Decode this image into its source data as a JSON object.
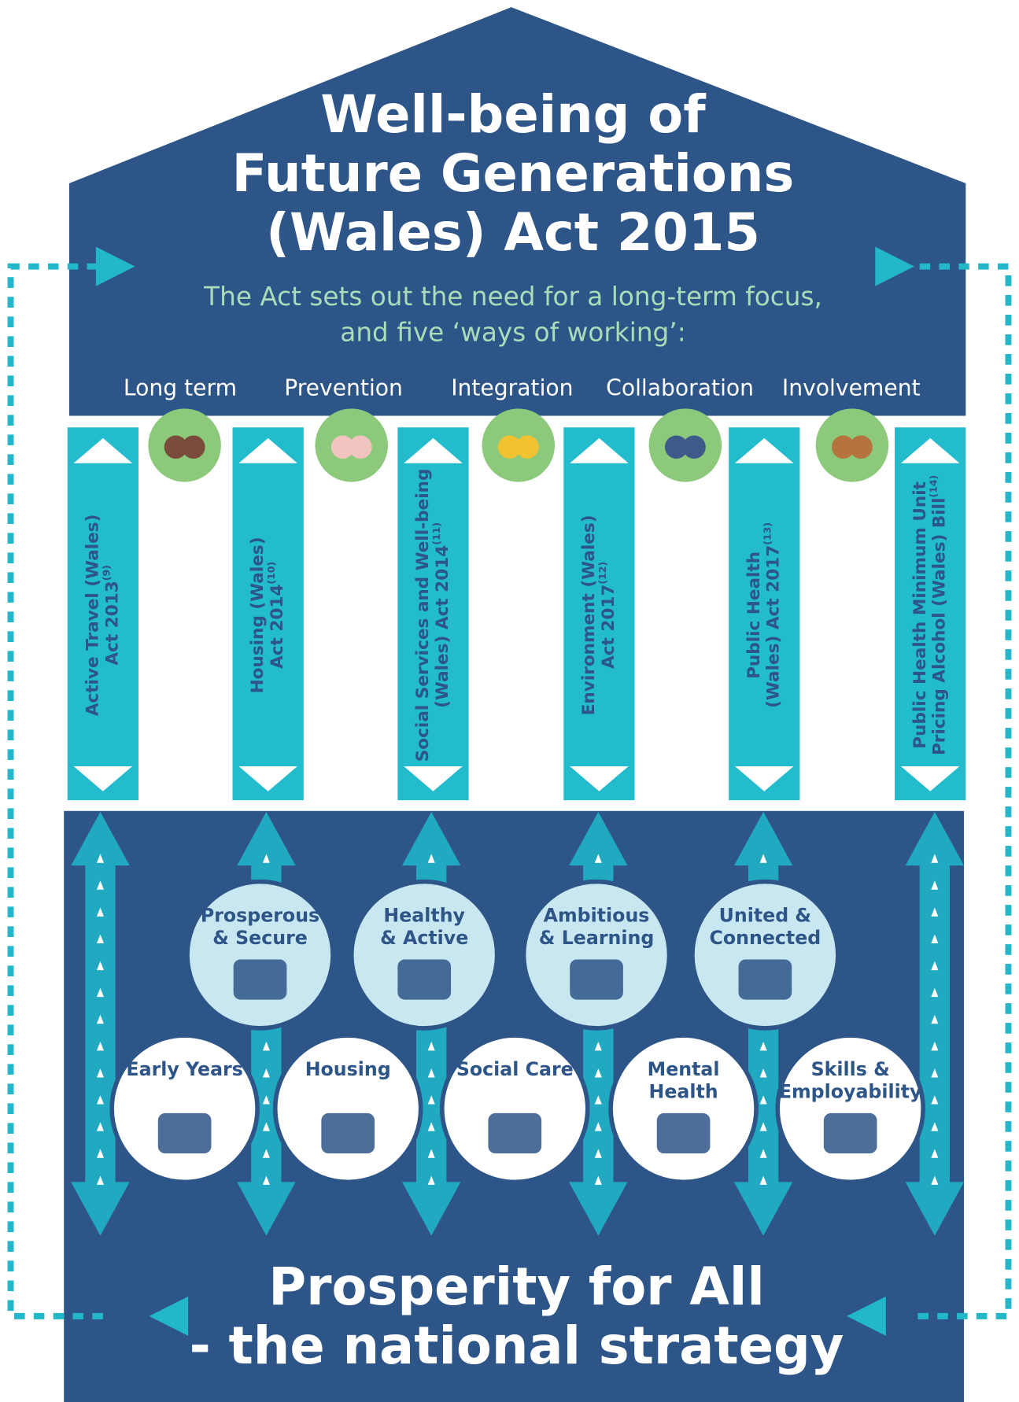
{
  "title": [
    "Well-being of",
    "Future Generations",
    "(Wales) Act 2015"
  ],
  "subtitle": [
    "The Act sets out the need for a long-term focus,",
    "and five ‘ways of working’:"
  ],
  "ways_of_working": [
    "Long term",
    "Prevention",
    "Integration",
    "Collaboration",
    "Involvement"
  ],
  "acts": [
    {
      "lines": [
        "Active Travel (Wales)",
        "Act 2013"
      ],
      "ref": "(9)"
    },
    {
      "lines": [
        "Housing (Wales)",
        "Act 2014"
      ],
      "ref": "(10)"
    },
    {
      "lines": [
        "Social Services and Well-being",
        "(Wales) Act 2014"
      ],
      "ref": "(11)"
    },
    {
      "lines": [
        "Environment (Wales)",
        "Act 2017"
      ],
      "ref": "(12)"
    },
    {
      "lines": [
        "Public Health",
        "(Wales) Act  2017"
      ],
      "ref": "(13)"
    },
    {
      "lines": [
        "Public Health Minimum Unit",
        "Pricing Alcohol (Wales) Bill"
      ],
      "ref": "(14)"
    }
  ],
  "goals_top": [
    [
      "Prosperous",
      "& Secure"
    ],
    [
      "Healthy",
      "& Active"
    ],
    [
      "Ambitious",
      "& Learning"
    ],
    [
      "United &",
      "Connected"
    ]
  ],
  "goals_bottom": [
    [
      "Early Years"
    ],
    [
      "Housing"
    ],
    [
      "Social Care"
    ],
    [
      "Mental",
      "Health"
    ],
    [
      "Skills &",
      "Employability"
    ]
  ],
  "footer": [
    "Prosperity for All",
    "- the national strategy"
  ]
}
